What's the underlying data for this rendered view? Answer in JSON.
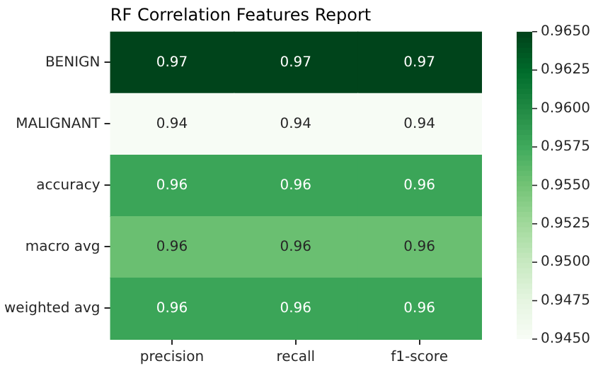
{
  "chart_data": {
    "type": "heatmap",
    "title": "RF Correlation Features Report",
    "categories": [
      "precision",
      "recall",
      "f1-score"
    ],
    "y_categories": [
      "BENIGN",
      "MALIGNANT",
      "accuracy",
      "macro avg",
      "weighted avg"
    ],
    "cells": [
      [
        0.965,
        0.965,
        0.965
      ],
      [
        0.945,
        0.945,
        0.945
      ],
      [
        0.958,
        0.958,
        0.958
      ],
      [
        0.9555,
        0.9555,
        0.9555
      ],
      [
        0.958,
        0.958,
        0.958
      ]
    ],
    "cell_labels": [
      [
        "0.97",
        "0.97",
        "0.97"
      ],
      [
        "0.94",
        "0.94",
        "0.94"
      ],
      [
        "0.96",
        "0.96",
        "0.96"
      ],
      [
        "0.96",
        "0.96",
        "0.96"
      ],
      [
        "0.96",
        "0.96",
        "0.96"
      ]
    ],
    "cticks": [
      {
        "value": 0.945,
        "label": "0.9450"
      },
      {
        "value": 0.9475,
        "label": "0.9475"
      },
      {
        "value": 0.95,
        "label": "0.9500"
      },
      {
        "value": 0.9525,
        "label": "0.9525"
      },
      {
        "value": 0.955,
        "label": "0.9550"
      },
      {
        "value": 0.9575,
        "label": "0.9575"
      },
      {
        "value": 0.96,
        "label": "0.9600"
      },
      {
        "value": 0.9625,
        "label": "0.9625"
      },
      {
        "value": 0.965,
        "label": "0.9650"
      }
    ]
  }
}
